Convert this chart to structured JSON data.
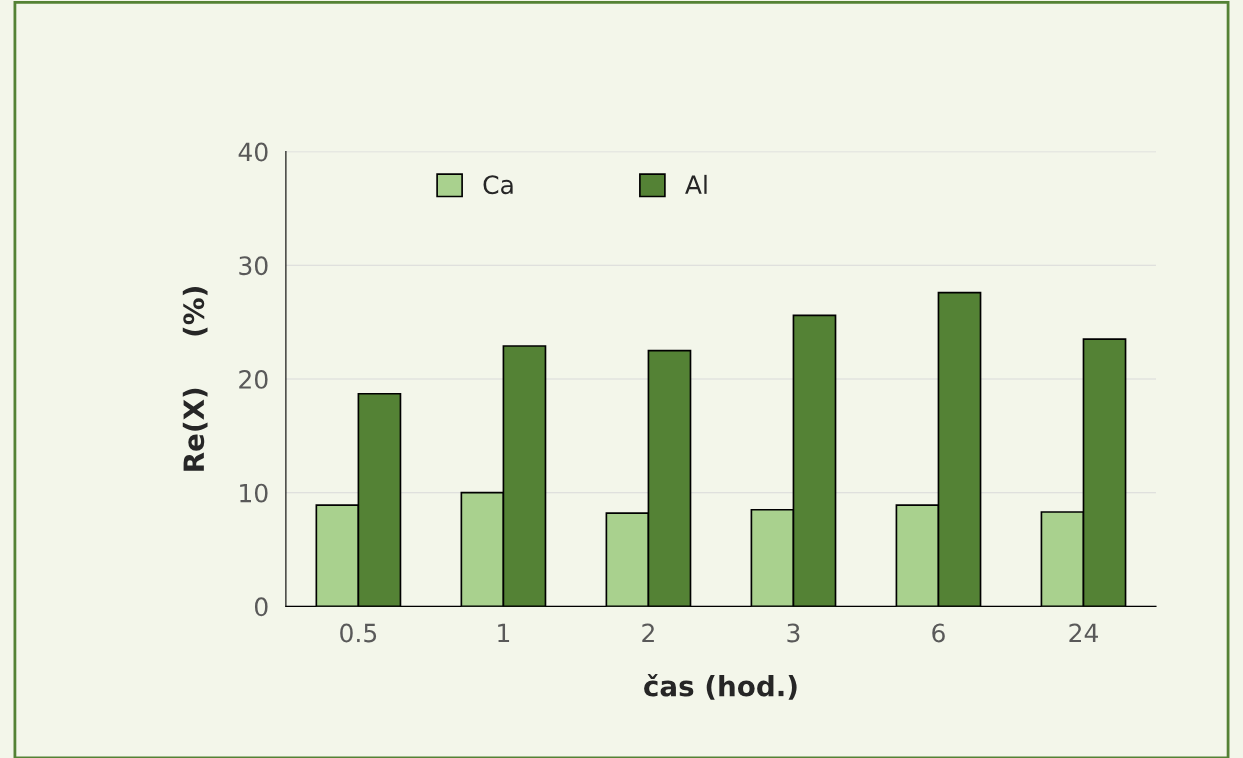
{
  "chart_data": {
    "type": "bar",
    "xlabel": "čas (hod.)",
    "ylabel": "Re(X)     (%)",
    "categories": [
      "0.5",
      "1",
      "2",
      "3",
      "6",
      "24"
    ],
    "series": [
      {
        "name": "Ca",
        "color": "#a9d18e",
        "values": [
          8.9,
          10.0,
          8.2,
          8.5,
          8.9,
          8.3
        ]
      },
      {
        "name": "Al",
        "color": "#548235",
        "values": [
          18.7,
          22.9,
          22.5,
          25.6,
          27.6,
          23.5
        ]
      }
    ],
    "ylim": [
      0,
      40
    ],
    "yticks": [
      0,
      10,
      20,
      30,
      40
    ],
    "grid": "y",
    "legend": "top"
  }
}
